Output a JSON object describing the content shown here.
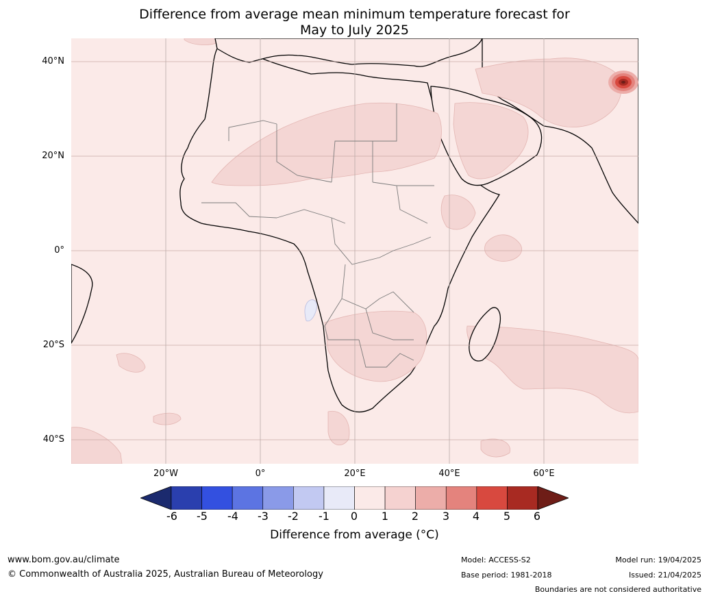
{
  "title_line1": "Difference from average mean minimum temperature forecast for",
  "title_line2": "May to July 2025",
  "map": {
    "lat_labels": [
      "40°N",
      "20°N",
      "0°",
      "20°S",
      "40°S"
    ],
    "lon_labels": [
      "20°W",
      "0°",
      "20°E",
      "40°E",
      "60°E"
    ],
    "ocean_color": "#fbeae8",
    "anomaly_1_2_color": "#f4d6d4",
    "hotspot_color": "#b8302a"
  },
  "colorbar": {
    "ticks": [
      "-6",
      "-5",
      "-4",
      "-3",
      "-2",
      "-1",
      "0",
      "1",
      "2",
      "3",
      "4",
      "5",
      "6"
    ],
    "colors": [
      "#1b2a6e",
      "#2a3fae",
      "#3350e0",
      "#5c74e2",
      "#8a9ae8",
      "#c2c9f2",
      "#e8eaf8",
      "#fbeae8",
      "#f5d2d0",
      "#ecada9",
      "#e4837d",
      "#d8493f",
      "#a82a22",
      "#6e1d17"
    ],
    "label": "Difference from average (°C)"
  },
  "footer": {
    "website": "www.bom.gov.au/climate",
    "copyright": "© Commonwealth of Australia 2025, Australian Bureau of Meteorology",
    "model": "Model: ACCESS-S2",
    "base_period": "Base period: 1981-2018",
    "model_run": "Model run: 19/04/2025",
    "issued": "Issued: 21/04/2025",
    "boundaries": "Boundaries are not considered authoritative"
  }
}
